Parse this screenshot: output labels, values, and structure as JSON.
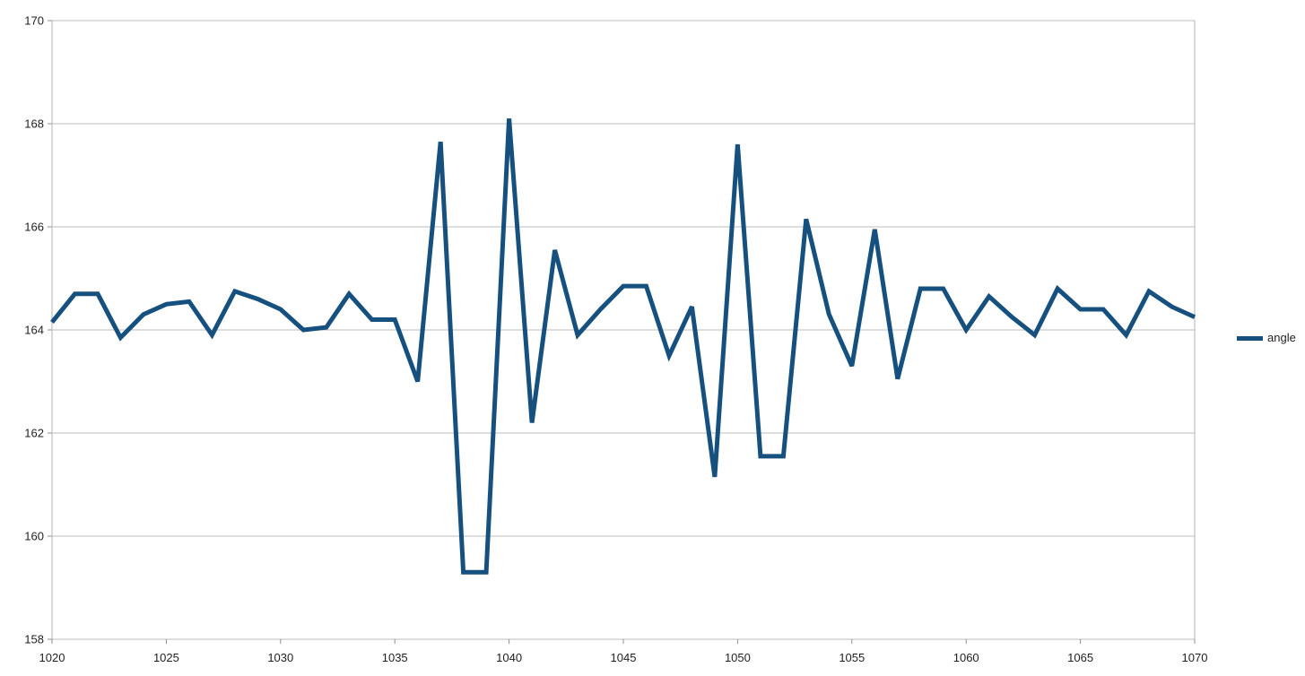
{
  "chart_data": {
    "type": "line",
    "title": "",
    "xlabel": "",
    "ylabel": "",
    "xlim": [
      1020,
      1070
    ],
    "ylim": [
      158,
      170
    ],
    "x_ticks": [
      1020,
      1025,
      1030,
      1035,
      1040,
      1045,
      1050,
      1055,
      1060,
      1065,
      1070
    ],
    "y_ticks": [
      158,
      160,
      162,
      164,
      166,
      168,
      170
    ],
    "grid": "horizontal",
    "legend_position": "right-middle",
    "series": [
      {
        "name": "angle",
        "color": "#15507e",
        "x": [
          1020,
          1021,
          1022,
          1023,
          1024,
          1025,
          1026,
          1027,
          1028,
          1029,
          1030,
          1031,
          1032,
          1033,
          1034,
          1035,
          1036,
          1037,
          1038,
          1039,
          1040,
          1041,
          1042,
          1043,
          1044,
          1045,
          1046,
          1047,
          1048,
          1049,
          1050,
          1051,
          1052,
          1053,
          1054,
          1055,
          1056,
          1057,
          1058,
          1059,
          1060,
          1061,
          1062,
          1063,
          1064,
          1065,
          1066,
          1067,
          1068,
          1069,
          1070
        ],
        "values": [
          164.15,
          164.7,
          164.7,
          163.85,
          164.3,
          164.5,
          164.55,
          163.9,
          164.75,
          164.6,
          164.4,
          164.0,
          164.05,
          164.7,
          164.2,
          164.2,
          163.0,
          167.65,
          159.3,
          159.3,
          168.1,
          162.2,
          165.55,
          163.9,
          164.4,
          164.85,
          164.85,
          163.5,
          164.45,
          161.15,
          167.6,
          161.55,
          161.55,
          166.15,
          164.3,
          163.3,
          165.95,
          163.05,
          164.8,
          164.8,
          164.0,
          164.65,
          164.25,
          163.9,
          164.8,
          164.4,
          164.4,
          163.9,
          164.75,
          164.45,
          164.25
        ]
      }
    ],
    "colors": {
      "line": "#15507e",
      "gridline": "#bdbdbd",
      "axis": "#b3b3b3",
      "tick": "#8f8f8f",
      "label": "#1f1f1f",
      "background": "#ffffff"
    }
  }
}
